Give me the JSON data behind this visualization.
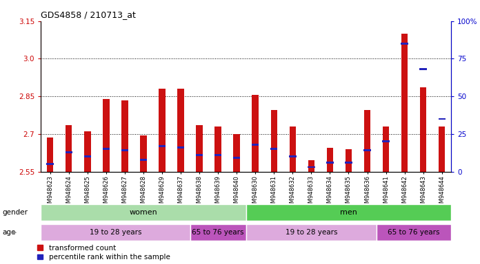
{
  "title": "GDS4858 / 210713_at",
  "samples": [
    "GSM948623",
    "GSM948624",
    "GSM948625",
    "GSM948626",
    "GSM948627",
    "GSM948628",
    "GSM948629",
    "GSM948637",
    "GSM948638",
    "GSM948639",
    "GSM948640",
    "GSM948630",
    "GSM948631",
    "GSM948632",
    "GSM948633",
    "GSM948634",
    "GSM948635",
    "GSM948636",
    "GSM948641",
    "GSM948642",
    "GSM948643",
    "GSM948644"
  ],
  "red_values": [
    2.685,
    2.735,
    2.71,
    2.84,
    2.835,
    2.695,
    2.88,
    2.88,
    2.735,
    2.73,
    2.7,
    2.855,
    2.795,
    2.73,
    2.595,
    2.645,
    2.64,
    2.795,
    2.73,
    3.1,
    2.885,
    2.73
  ],
  "blue_values": [
    5,
    13,
    10,
    15,
    14,
    8,
    17,
    16,
    11,
    11,
    9,
    18,
    15,
    10,
    3,
    6,
    6,
    14,
    20,
    85,
    68,
    35
  ],
  "ymin": 2.55,
  "ymax": 3.15,
  "yticks_left": [
    2.55,
    2.7,
    2.85,
    3.0,
    3.15
  ],
  "yticks_right": [
    0,
    25,
    50,
    75,
    100
  ],
  "bar_color": "#cc1111",
  "blue_color": "#2222bb",
  "gender_groups": [
    {
      "label": "women",
      "start": 0,
      "end": 11,
      "color": "#aaddaa"
    },
    {
      "label": "men",
      "start": 11,
      "end": 22,
      "color": "#44cc44"
    }
  ],
  "age_groups": [
    {
      "label": "19 to 28 years",
      "start": 0,
      "end": 8,
      "color": "#ddaadd"
    },
    {
      "label": "65 to 76 years",
      "start": 8,
      "end": 11,
      "color": "#bb66bb"
    },
    {
      "label": "19 to 28 years",
      "start": 11,
      "end": 18,
      "color": "#ddaadd"
    },
    {
      "label": "65 to 76 years",
      "start": 18,
      "end": 22,
      "color": "#bb66bb"
    }
  ],
  "legend_red": "transformed count",
  "legend_blue": "percentile rank within the sample",
  "bar_width": 0.35,
  "blue_bar_height": 0.008,
  "baseline": 2.55,
  "gridlines": [
    2.7,
    2.85,
    3.0
  ]
}
